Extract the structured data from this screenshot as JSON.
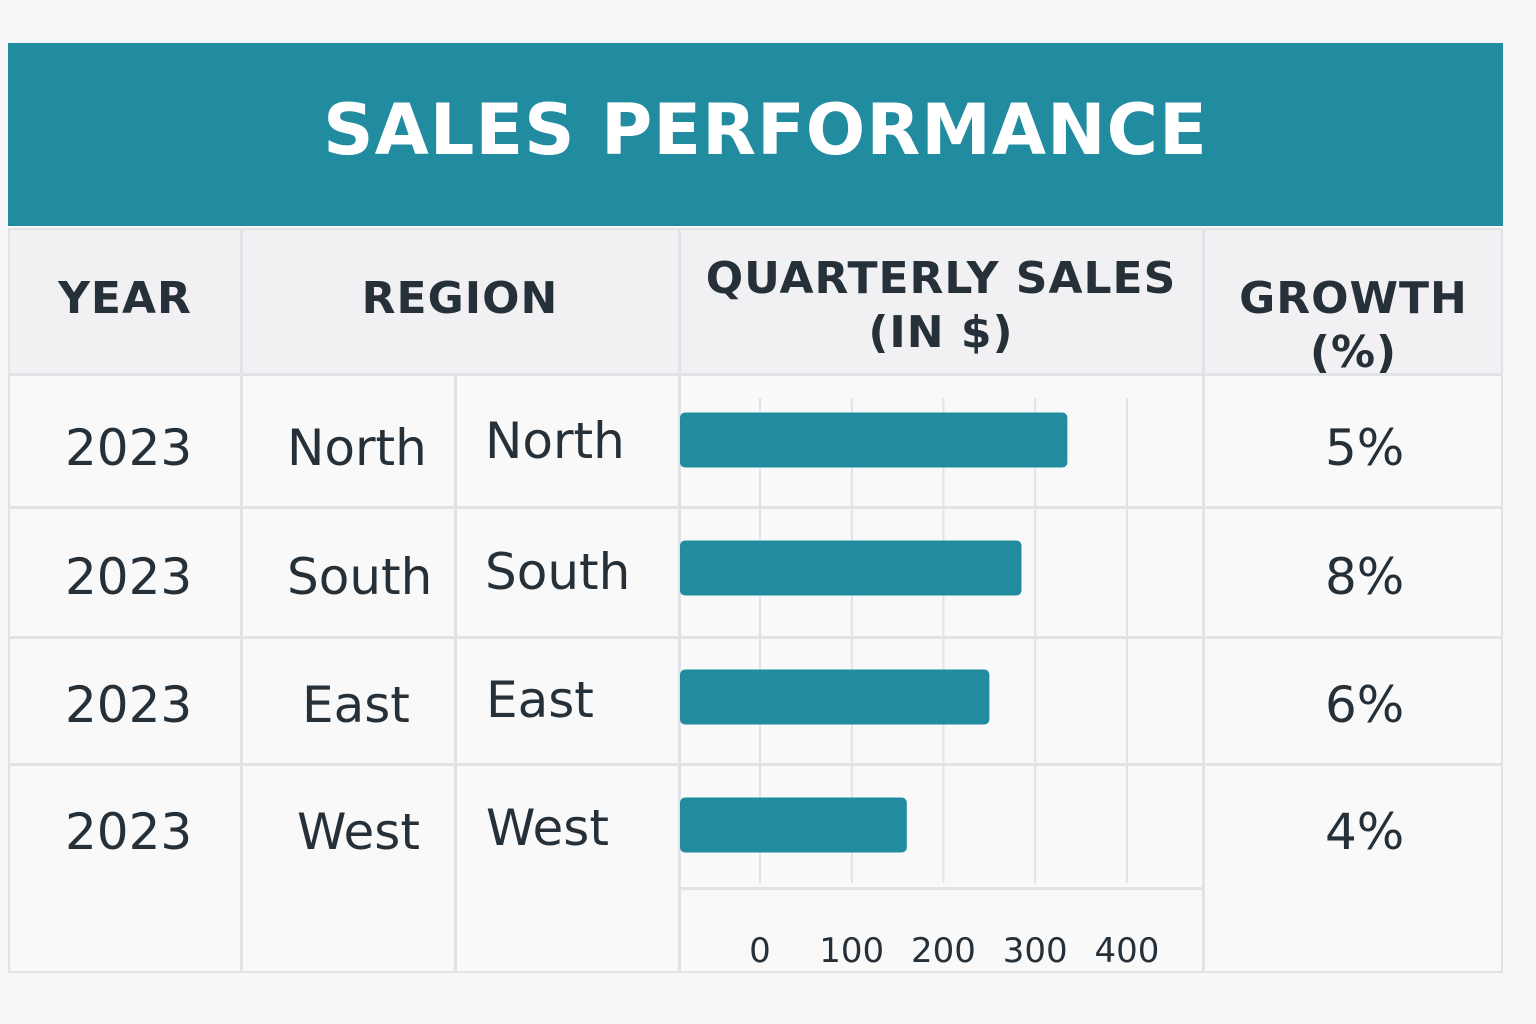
{
  "title": "SALES PERFORMANCE",
  "headers": {
    "year": "YEAR",
    "region": "REGION",
    "sales_line1": "QUARTERLY SALES",
    "sales_line2": "(IN $)",
    "growth_line1": "GROWTH",
    "growth_line2": "(%)"
  },
  "rows": [
    {
      "year": "2023",
      "region": "North",
      "region2": "North",
      "growth": "5%"
    },
    {
      "year": "2023",
      "region": "South",
      "region2": "South",
      "growth": "8%"
    },
    {
      "year": "2023",
      "region": "East",
      "region2": "East",
      "growth": "6%"
    },
    {
      "year": "2023",
      "region": "West",
      "region2": "West",
      "growth": "4%"
    }
  ],
  "colors": {
    "accent": "#218c9f",
    "grid": "#e1e3e6",
    "text": "#263038"
  },
  "chart_data": {
    "type": "bar",
    "orientation": "horizontal",
    "categories": [
      "North",
      "South",
      "East",
      "West"
    ],
    "values": [
      335,
      285,
      250,
      160
    ],
    "xlim": [
      0,
      400
    ],
    "xticks": [
      "0",
      "100",
      "200",
      "300",
      "400"
    ],
    "grid": true
  }
}
